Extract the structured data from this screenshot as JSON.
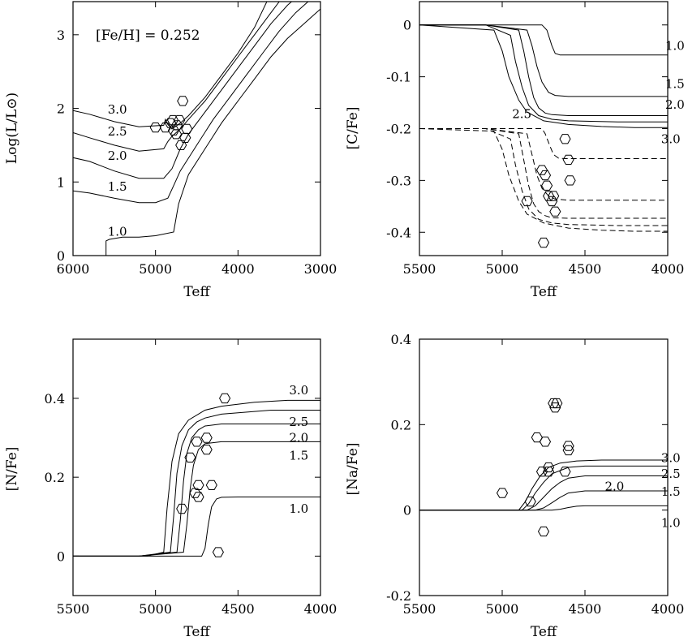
{
  "chart_data": [
    {
      "id": "hrd",
      "type": "line",
      "xlabel": "Teff",
      "ylabel": "Log(L/L⊙)",
      "xlim": [
        6000,
        3000
      ],
      "ylim": [
        0,
        3.45
      ],
      "xticks": [
        6000,
        5000,
        4000,
        3000
      ],
      "xtick_labels": [
        "6000",
        "5000",
        "4000",
        "3000"
      ],
      "yticks": [
        0,
        1,
        2,
        3
      ],
      "ytick_labels": [
        "0",
        "1",
        "2",
        "3"
      ],
      "annotation": "[Fe/H] = 0.252",
      "series": [
        {
          "name": "1.0",
          "x": [
            5600,
            5600,
            5560,
            5400,
            5200,
            5000,
            4780,
            4720,
            4600,
            4400,
            4200,
            4000,
            3800,
            3600,
            3400,
            3200,
            3000
          ],
          "y": [
            0,
            0.2,
            0.22,
            0.25,
            0.25,
            0.27,
            0.32,
            0.7,
            1.1,
            1.45,
            1.8,
            2.1,
            2.4,
            2.7,
            2.95,
            3.15,
            3.35
          ]
        },
        {
          "name": "1.5",
          "x": [
            6000,
            5800,
            5500,
            5200,
            5000,
            4850,
            4780,
            4700,
            4500,
            4300,
            4100,
            3900,
            3700,
            3500,
            3300,
            3100,
            3000
          ],
          "y": [
            0.88,
            0.85,
            0.78,
            0.72,
            0.72,
            0.78,
            0.95,
            1.15,
            1.5,
            1.85,
            2.15,
            2.45,
            2.75,
            3.05,
            3.3,
            3.5,
            3.6
          ]
        },
        {
          "name": "2.0",
          "x": [
            6000,
            5800,
            5500,
            5200,
            4900,
            4800,
            4700,
            4600,
            4400,
            4200,
            4000,
            3800,
            3600,
            3400,
            3300
          ],
          "y": [
            1.33,
            1.28,
            1.15,
            1.05,
            1.05,
            1.18,
            1.45,
            1.65,
            1.95,
            2.25,
            2.55,
            2.85,
            3.15,
            3.4,
            3.5
          ]
        },
        {
          "name": "2.5",
          "x": [
            6000,
            5800,
            5500,
            5200,
            4900,
            4850,
            4800,
            4700,
            4600,
            4400,
            4200,
            4000,
            3800,
            3600,
            3500
          ],
          "y": [
            1.67,
            1.6,
            1.5,
            1.42,
            1.45,
            1.55,
            1.62,
            1.72,
            1.85,
            2.1,
            2.4,
            2.7,
            3.0,
            3.3,
            3.45
          ]
        },
        {
          "name": "3.0",
          "x": [
            6000,
            5800,
            5500,
            5200,
            4900,
            4880,
            4850,
            4800,
            4700,
            4600,
            4400,
            4200,
            4000,
            3800,
            3650
          ],
          "y": [
            1.97,
            1.92,
            1.82,
            1.75,
            1.77,
            1.85,
            1.78,
            1.72,
            1.8,
            1.9,
            2.15,
            2.45,
            2.75,
            3.1,
            3.45
          ]
        }
      ],
      "points": [
        {
          "x": 5000,
          "y": 1.74
        },
        {
          "x": 4880,
          "y": 1.74
        },
        {
          "x": 4820,
          "y": 1.8
        },
        {
          "x": 4790,
          "y": 1.84
        },
        {
          "x": 4780,
          "y": 1.7
        },
        {
          "x": 4750,
          "y": 1.65
        },
        {
          "x": 4740,
          "y": 1.77
        },
        {
          "x": 4710,
          "y": 1.84
        },
        {
          "x": 4690,
          "y": 1.5
        },
        {
          "x": 4670,
          "y": 2.1
        },
        {
          "x": 4640,
          "y": 1.6
        },
        {
          "x": 4620,
          "y": 1.72
        }
      ]
    },
    {
      "id": "cfe",
      "type": "line",
      "xlabel": "Teff",
      "ylabel": "[C/Fe]",
      "xlim": [
        5500,
        4000
      ],
      "ylim": [
        -0.445,
        0.045
      ],
      "xticks": [
        5500,
        5000,
        4500,
        4000
      ],
      "xtick_labels": [
        "5500",
        "5000",
        "4500",
        "4000"
      ],
      "yticks": [
        0,
        -0.1,
        -0.2,
        -0.3,
        -0.4
      ],
      "ytick_labels": [
        "0",
        "-0.1",
        "-0.2",
        "-0.3",
        "-0.4"
      ],
      "series": [
        {
          "name": "1.0",
          "style": "solid",
          "x": [
            5500,
            5100,
            4760,
            4730,
            4700,
            4680,
            4650,
            4600,
            4500,
            4000
          ],
          "y": [
            0,
            0,
            0,
            -0.01,
            -0.04,
            -0.055,
            -0.058,
            -0.058,
            -0.058,
            -0.058
          ]
        },
        {
          "name": "1.5",
          "style": "solid",
          "x": [
            5500,
            5100,
            4850,
            4820,
            4790,
            4760,
            4720,
            4680,
            4600,
            4000
          ],
          "y": [
            0,
            0,
            -0.01,
            -0.04,
            -0.08,
            -0.11,
            -0.13,
            -0.136,
            -0.138,
            -0.138
          ]
        },
        {
          "name": "2.0",
          "style": "solid",
          "x": [
            5500,
            5100,
            4900,
            4870,
            4840,
            4810,
            4780,
            4740,
            4700,
            4600,
            4000
          ],
          "y": [
            0,
            0,
            -0.01,
            -0.05,
            -0.1,
            -0.14,
            -0.16,
            -0.17,
            -0.173,
            -0.175,
            -0.175
          ]
        },
        {
          "name": "2.5",
          "style": "solid",
          "x": [
            5500,
            5100,
            4950,
            4920,
            4880,
            4840,
            4780,
            4700,
            4600,
            4300,
            4000
          ],
          "y": [
            0,
            0,
            -0.02,
            -0.07,
            -0.12,
            -0.155,
            -0.175,
            -0.182,
            -0.185,
            -0.187,
            -0.187
          ]
        },
        {
          "name": "3.0",
          "style": "solid",
          "x": [
            5500,
            5050,
            5000,
            4960,
            4900,
            4850,
            4750,
            4600,
            4400,
            4200,
            4000
          ],
          "y": [
            0,
            -0.01,
            -0.05,
            -0.1,
            -0.145,
            -0.168,
            -0.185,
            -0.192,
            -0.196,
            -0.198,
            -0.198
          ]
        },
        {
          "name": "1.0",
          "style": "dashed",
          "x": [
            5500,
            5100,
            4760,
            4740,
            4710,
            4690,
            4660,
            4620,
            4500,
            4000
          ],
          "y": [
            -0.2,
            -0.2,
            -0.2,
            -0.21,
            -0.235,
            -0.25,
            -0.257,
            -0.258,
            -0.258,
            -0.258
          ]
        },
        {
          "name": "1.5",
          "style": "dashed",
          "x": [
            5500,
            5100,
            4850,
            4820,
            4790,
            4760,
            4720,
            4680,
            4600,
            4000
          ],
          "y": [
            -0.2,
            -0.2,
            -0.21,
            -0.25,
            -0.29,
            -0.315,
            -0.33,
            -0.336,
            -0.338,
            -0.338
          ]
        },
        {
          "name": "2.0",
          "style": "dashed",
          "x": [
            5500,
            5100,
            4900,
            4870,
            4840,
            4810,
            4780,
            4740,
            4700,
            4600,
            4000
          ],
          "y": [
            -0.2,
            -0.2,
            -0.21,
            -0.26,
            -0.31,
            -0.345,
            -0.36,
            -0.368,
            -0.372,
            -0.373,
            -0.373
          ]
        },
        {
          "name": "2.5",
          "style": "dashed",
          "x": [
            5500,
            5100,
            4950,
            4920,
            4880,
            4840,
            4780,
            4700,
            4600,
            4300,
            4000
          ],
          "y": [
            -0.2,
            -0.2,
            -0.22,
            -0.27,
            -0.32,
            -0.355,
            -0.375,
            -0.382,
            -0.385,
            -0.387,
            -0.387
          ]
        },
        {
          "name": "3.0",
          "style": "dashed",
          "x": [
            5500,
            5050,
            5000,
            4960,
            4900,
            4850,
            4750,
            4600,
            4400,
            4200,
            4000
          ],
          "y": [
            -0.2,
            -0.205,
            -0.24,
            -0.29,
            -0.34,
            -0.365,
            -0.382,
            -0.392,
            -0.396,
            -0.398,
            -0.398
          ]
        }
      ],
      "points": [
        {
          "x": 4850,
          "y": -0.34
        },
        {
          "x": 4760,
          "y": -0.28
        },
        {
          "x": 4740,
          "y": -0.29
        },
        {
          "x": 4730,
          "y": -0.31
        },
        {
          "x": 4720,
          "y": -0.33
        },
        {
          "x": 4700,
          "y": -0.34
        },
        {
          "x": 4690,
          "y": -0.33
        },
        {
          "x": 4680,
          "y": -0.36
        },
        {
          "x": 4620,
          "y": -0.22
        },
        {
          "x": 4600,
          "y": -0.26
        },
        {
          "x": 4590,
          "y": -0.3
        },
        {
          "x": 4750,
          "y": -0.42
        }
      ]
    },
    {
      "id": "nfe",
      "type": "line",
      "xlabel": "Teff",
      "ylabel": "[N/Fe]",
      "xlim": [
        5500,
        4000
      ],
      "ylim": [
        -0.1,
        0.55
      ],
      "xticks": [
        5500,
        5000,
        4500,
        4000
      ],
      "xtick_labels": [
        "5500",
        "5000",
        "4500",
        "4000"
      ],
      "yticks": [
        0,
        0.2,
        0.4
      ],
      "ytick_labels": [
        "0",
        "0.2",
        "0.4"
      ],
      "series": [
        {
          "name": "1.0",
          "x": [
            5500,
            5100,
            4720,
            4700,
            4680,
            4660,
            4630,
            4600,
            4500,
            4000
          ],
          "y": [
            0,
            0,
            0,
            0.02,
            0.08,
            0.125,
            0.145,
            0.149,
            0.15,
            0.15
          ]
        },
        {
          "name": "1.5",
          "x": [
            5500,
            5100,
            4830,
            4810,
            4790,
            4770,
            4740,
            4700,
            4600,
            4000
          ],
          "y": [
            0,
            0,
            0.01,
            0.08,
            0.17,
            0.23,
            0.27,
            0.285,
            0.29,
            0.29
          ]
        },
        {
          "name": "2.0",
          "x": [
            5500,
            5100,
            4870,
            4850,
            4830,
            4810,
            4780,
            4740,
            4700,
            4600,
            4000
          ],
          "y": [
            0,
            0,
            0.01,
            0.09,
            0.19,
            0.26,
            0.3,
            0.32,
            0.33,
            0.335,
            0.335
          ]
        },
        {
          "name": "2.5",
          "x": [
            5500,
            5100,
            4910,
            4890,
            4870,
            4840,
            4800,
            4750,
            4700,
            4600,
            4300,
            4000
          ],
          "y": [
            0,
            0,
            0.01,
            0.1,
            0.21,
            0.28,
            0.32,
            0.34,
            0.35,
            0.36,
            0.37,
            0.37
          ]
        },
        {
          "name": "3.0",
          "x": [
            5500,
            5050,
            4950,
            4930,
            4900,
            4860,
            4800,
            4700,
            4600,
            4400,
            4200,
            4000
          ],
          "y": [
            0,
            0,
            0.01,
            0.12,
            0.24,
            0.31,
            0.345,
            0.37,
            0.38,
            0.39,
            0.395,
            0.395
          ]
        }
      ],
      "points": [
        {
          "x": 4840,
          "y": 0.12
        },
        {
          "x": 4790,
          "y": 0.25
        },
        {
          "x": 4750,
          "y": 0.29
        },
        {
          "x": 4760,
          "y": 0.16
        },
        {
          "x": 4740,
          "y": 0.15
        },
        {
          "x": 4740,
          "y": 0.18
        },
        {
          "x": 4690,
          "y": 0.27
        },
        {
          "x": 4690,
          "y": 0.3
        },
        {
          "x": 4660,
          "y": 0.18
        },
        {
          "x": 4620,
          "y": 0.01
        },
        {
          "x": 4580,
          "y": 0.4
        }
      ]
    },
    {
      "id": "nafe",
      "type": "line",
      "xlabel": "Teff",
      "ylabel": "[Na/Fe]",
      "xlim": [
        5500,
        4000
      ],
      "ylim": [
        -0.2,
        0.4
      ],
      "xticks": [
        5500,
        5000,
        4500,
        4000
      ],
      "xtick_labels": [
        "5500",
        "5000",
        "4500",
        "4000"
      ],
      "yticks": [
        -0.2,
        0,
        0.2,
        0.4
      ],
      "ytick_labels": [
        "-0.2",
        "0",
        "0.2",
        "0.4"
      ],
      "series": [
        {
          "name": "1.0",
          "x": [
            5500,
            4700,
            4650,
            4600,
            4550,
            4500,
            4400,
            4000
          ],
          "y": [
            0,
            0,
            0.002,
            0.006,
            0.009,
            0.01,
            0.01,
            0.01
          ]
        },
        {
          "name": "1.5",
          "x": [
            5500,
            4800,
            4750,
            4700,
            4650,
            4600,
            4500,
            4000
          ],
          "y": [
            0,
            0,
            0.005,
            0.017,
            0.03,
            0.04,
            0.045,
            0.045
          ]
        },
        {
          "name": "2.0",
          "x": [
            5500,
            4850,
            4800,
            4750,
            4700,
            4650,
            4600,
            4500,
            4000
          ],
          "y": [
            0,
            0,
            0.01,
            0.03,
            0.05,
            0.065,
            0.075,
            0.08,
            0.08
          ]
        },
        {
          "name": "2.5",
          "x": [
            5500,
            4880,
            4840,
            4800,
            4750,
            4700,
            4600,
            4500,
            4000
          ],
          "y": [
            0,
            0,
            0.015,
            0.04,
            0.065,
            0.085,
            0.1,
            0.103,
            0.103
          ]
        },
        {
          "name": "3.0",
          "x": [
            5500,
            4900,
            4860,
            4820,
            4770,
            4720,
            4650,
            4550,
            4400,
            4000
          ],
          "y": [
            0,
            0,
            0.02,
            0.05,
            0.08,
            0.1,
            0.11,
            0.115,
            0.117,
            0.117
          ]
        }
      ],
      "points": [
        {
          "x": 5000,
          "y": 0.04
        },
        {
          "x": 4830,
          "y": 0.02
        },
        {
          "x": 4790,
          "y": 0.17
        },
        {
          "x": 4760,
          "y": 0.09
        },
        {
          "x": 4750,
          "y": -0.05
        },
        {
          "x": 4740,
          "y": 0.16
        },
        {
          "x": 4720,
          "y": 0.1
        },
        {
          "x": 4720,
          "y": 0.09
        },
        {
          "x": 4690,
          "y": 0.25
        },
        {
          "x": 4680,
          "y": 0.24
        },
        {
          "x": 4670,
          "y": 0.25
        },
        {
          "x": 4620,
          "y": 0.09
        },
        {
          "x": 4600,
          "y": 0.14
        },
        {
          "x": 4600,
          "y": 0.15
        }
      ]
    }
  ]
}
